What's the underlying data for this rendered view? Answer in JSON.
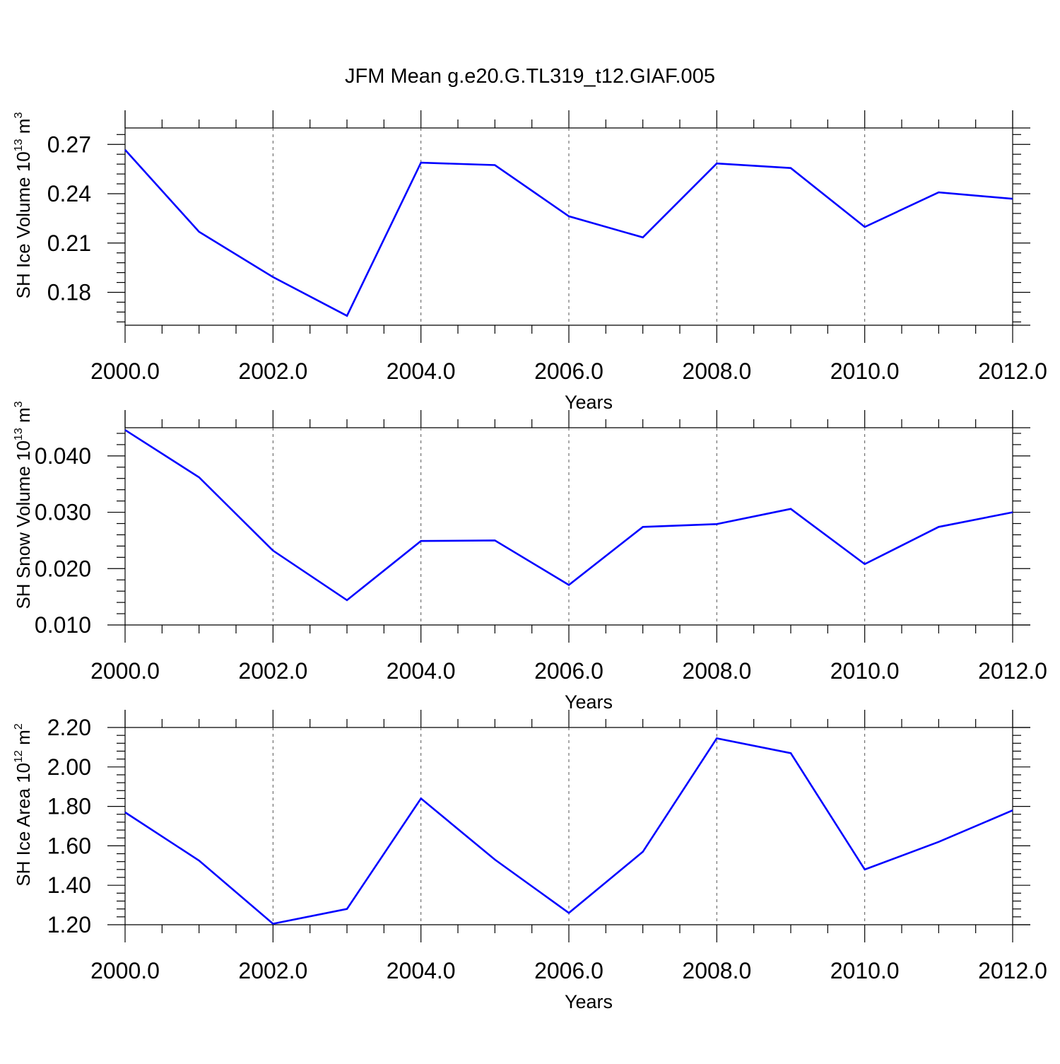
{
  "title": "JFM Mean g.e20.G.TL319_t12.GIAF.005",
  "line_color": "#0000ff",
  "chart_data": [
    {
      "type": "line",
      "xlabel": "Years",
      "ylabel": "SH Ice Volume 10",
      "ylabel_sup1": "13",
      "ylabel_mid": " m",
      "ylabel_sup2": "3",
      "xlim": [
        2000,
        2012
      ],
      "ylim": [
        0.16,
        0.28
      ],
      "xticks": [
        2000,
        2002,
        2004,
        2006,
        2008,
        2010,
        2012
      ],
      "xtick_labels": [
        "2000.0",
        "2002.0",
        "2004.0",
        "2006.0",
        "2008.0",
        "2010.0",
        "2012.0"
      ],
      "yticks": [
        0.18,
        0.21,
        0.24,
        0.27
      ],
      "ytick_labels": [
        "0.18",
        "0.21",
        "0.24",
        "0.27"
      ],
      "grid_x": true,
      "x": [
        2000,
        2001,
        2002,
        2003,
        2004,
        2005,
        2006,
        2007,
        2008,
        2009,
        2010,
        2011,
        2012
      ],
      "values": [
        0.2667,
        0.2168,
        0.1893,
        0.1657,
        0.2589,
        0.2574,
        0.2263,
        0.2134,
        0.2584,
        0.2556,
        0.2198,
        0.2408,
        0.2369
      ]
    },
    {
      "type": "line",
      "xlabel": "Years",
      "ylabel": "SH Snow Volume 10",
      "ylabel_sup1": "13",
      "ylabel_mid": " m",
      "ylabel_sup2": "3",
      "xlim": [
        2000,
        2012
      ],
      "ylim": [
        0.01,
        0.045
      ],
      "xticks": [
        2000,
        2002,
        2004,
        2006,
        2008,
        2010,
        2012
      ],
      "xtick_labels": [
        "2000.0",
        "2002.0",
        "2004.0",
        "2006.0",
        "2008.0",
        "2010.0",
        "2012.0"
      ],
      "yticks": [
        0.01,
        0.02,
        0.03,
        0.04
      ],
      "ytick_labels": [
        "0.010",
        "0.020",
        "0.030",
        "0.040"
      ],
      "grid_x": true,
      "x": [
        2000,
        2001,
        2002,
        2003,
        2004,
        2005,
        2006,
        2007,
        2008,
        2009,
        2010,
        2011,
        2012
      ],
      "values": [
        0.0446,
        0.0362,
        0.0232,
        0.0144,
        0.0249,
        0.025,
        0.0171,
        0.0274,
        0.0279,
        0.0306,
        0.0208,
        0.0274,
        0.03
      ]
    },
    {
      "type": "line",
      "xlabel": "Years",
      "ylabel": "SH Ice Area 10",
      "ylabel_sup1": "12",
      "ylabel_mid": " m",
      "ylabel_sup2": "2",
      "xlim": [
        2000,
        2012
      ],
      "ylim": [
        1.2,
        2.2
      ],
      "xticks": [
        2000,
        2002,
        2004,
        2006,
        2008,
        2010,
        2012
      ],
      "xtick_labels": [
        "2000.0",
        "2002.0",
        "2004.0",
        "2006.0",
        "2008.0",
        "2010.0",
        "2012.0"
      ],
      "yticks": [
        1.2,
        1.4,
        1.6,
        1.8,
        2.0,
        2.2
      ],
      "ytick_labels": [
        "1.20",
        "1.40",
        "1.60",
        "1.80",
        "2.00",
        "2.20"
      ],
      "grid_x": true,
      "x": [
        2000,
        2001,
        2002,
        2003,
        2004,
        2005,
        2006,
        2007,
        2008,
        2009,
        2010,
        2011,
        2012
      ],
      "values": [
        1.77,
        1.525,
        1.205,
        1.28,
        1.84,
        1.53,
        1.26,
        1.57,
        2.145,
        2.07,
        1.48,
        1.62,
        1.78
      ]
    }
  ]
}
